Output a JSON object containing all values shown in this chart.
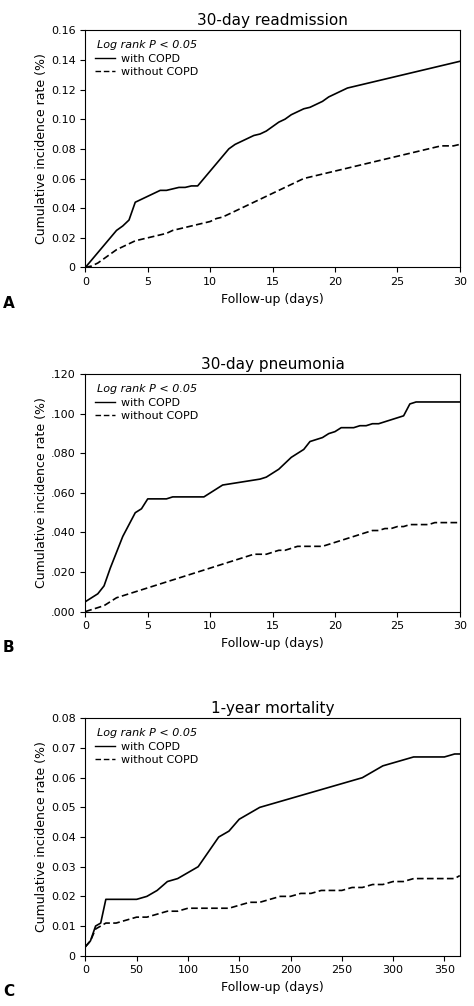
{
  "panel_A": {
    "title": "30-day readmission",
    "xlabel": "Follow-up (days)",
    "ylabel": "Cumulative incidence rate (%)",
    "label": "A",
    "xlim": [
      0,
      30
    ],
    "ylim": [
      0,
      0.16
    ],
    "yticks": [
      0,
      0.02,
      0.04,
      0.06,
      0.08,
      0.1,
      0.12,
      0.14,
      0.16
    ],
    "xticks": [
      0,
      5,
      10,
      15,
      20,
      25,
      30
    ],
    "legend_text": "Log rank P < 0.05",
    "with_copd_x": [
      0,
      0.5,
      1,
      1.5,
      2,
      2.5,
      3,
      3.5,
      4,
      4.5,
      5,
      5.5,
      6,
      6.5,
      7,
      7.5,
      8,
      8.5,
      9,
      9.5,
      10,
      10.5,
      11,
      11.5,
      12,
      12.5,
      13,
      13.5,
      14,
      14.5,
      15,
      15.5,
      16,
      16.5,
      17,
      17.5,
      18,
      18.5,
      19,
      19.5,
      20,
      20.5,
      21,
      21.5,
      22,
      22.5,
      23,
      23.5,
      24,
      24.5,
      25,
      25.5,
      26,
      26.5,
      27,
      27.5,
      28,
      28.5,
      29,
      29.5,
      30
    ],
    "with_copd_y": [
      0,
      0.005,
      0.01,
      0.015,
      0.02,
      0.025,
      0.028,
      0.032,
      0.044,
      0.046,
      0.048,
      0.05,
      0.052,
      0.052,
      0.053,
      0.054,
      0.054,
      0.055,
      0.055,
      0.06,
      0.065,
      0.07,
      0.075,
      0.08,
      0.083,
      0.085,
      0.087,
      0.089,
      0.09,
      0.092,
      0.095,
      0.098,
      0.1,
      0.103,
      0.105,
      0.107,
      0.108,
      0.11,
      0.112,
      0.115,
      0.117,
      0.119,
      0.121,
      0.122,
      0.123,
      0.124,
      0.125,
      0.126,
      0.127,
      0.128,
      0.129,
      0.13,
      0.131,
      0.132,
      0.133,
      0.134,
      0.135,
      0.136,
      0.137,
      0.138,
      0.139
    ],
    "without_copd_x": [
      0,
      0.5,
      1,
      1.5,
      2,
      2.5,
      3,
      3.5,
      4,
      4.5,
      5,
      5.5,
      6,
      6.5,
      7,
      7.5,
      8,
      8.5,
      9,
      9.5,
      10,
      10.5,
      11,
      11.5,
      12,
      12.5,
      13,
      13.5,
      14,
      14.5,
      15,
      15.5,
      16,
      16.5,
      17,
      17.5,
      18,
      18.5,
      19,
      19.5,
      20,
      20.5,
      21,
      21.5,
      22,
      22.5,
      23,
      23.5,
      24,
      24.5,
      25,
      25.5,
      26,
      26.5,
      27,
      27.5,
      28,
      28.5,
      29,
      29.5,
      30
    ],
    "without_copd_y": [
      0,
      0.001,
      0.003,
      0.006,
      0.009,
      0.012,
      0.014,
      0.016,
      0.018,
      0.019,
      0.02,
      0.021,
      0.022,
      0.023,
      0.025,
      0.026,
      0.027,
      0.028,
      0.029,
      0.03,
      0.031,
      0.033,
      0.034,
      0.036,
      0.038,
      0.04,
      0.042,
      0.044,
      0.046,
      0.048,
      0.05,
      0.052,
      0.054,
      0.056,
      0.058,
      0.06,
      0.061,
      0.062,
      0.063,
      0.064,
      0.065,
      0.066,
      0.067,
      0.068,
      0.069,
      0.07,
      0.071,
      0.072,
      0.073,
      0.074,
      0.075,
      0.076,
      0.077,
      0.078,
      0.079,
      0.08,
      0.081,
      0.082,
      0.082,
      0.082,
      0.083
    ]
  },
  "panel_B": {
    "title": "30-day pneumonia",
    "xlabel": "Follow-up (days)",
    "ylabel": "Cumulative incidence rate (%)",
    "label": "B",
    "xlim": [
      0,
      30
    ],
    "ylim": [
      0,
      0.12
    ],
    "yticks": [
      0.0,
      0.02,
      0.04,
      0.06,
      0.08,
      0.1,
      0.12
    ],
    "xticks": [
      0,
      5,
      10,
      15,
      20,
      25,
      30
    ],
    "legend_text": "Log rank P < 0.05",
    "with_copd_x": [
      0,
      0.5,
      1,
      1.5,
      2,
      2.5,
      3,
      3.5,
      4,
      4.5,
      5,
      5.5,
      6,
      6.5,
      7,
      7.5,
      8,
      8.5,
      9,
      9.5,
      10,
      10.5,
      11,
      12,
      13,
      14,
      14.5,
      15,
      15.5,
      16,
      16.5,
      17,
      17.5,
      18,
      18.5,
      19,
      19.5,
      20,
      20.5,
      21,
      21.5,
      22,
      22.5,
      23,
      23.5,
      24,
      24.5,
      25,
      25.5,
      26,
      26.5,
      27,
      27.5,
      28,
      28.5,
      29,
      29.5,
      30
    ],
    "with_copd_y": [
      0.005,
      0.007,
      0.009,
      0.013,
      0.022,
      0.03,
      0.038,
      0.044,
      0.05,
      0.052,
      0.057,
      0.057,
      0.057,
      0.057,
      0.058,
      0.058,
      0.058,
      0.058,
      0.058,
      0.058,
      0.06,
      0.062,
      0.064,
      0.065,
      0.066,
      0.067,
      0.068,
      0.07,
      0.072,
      0.075,
      0.078,
      0.08,
      0.082,
      0.086,
      0.087,
      0.088,
      0.09,
      0.091,
      0.093,
      0.093,
      0.093,
      0.094,
      0.094,
      0.095,
      0.095,
      0.096,
      0.097,
      0.098,
      0.099,
      0.105,
      0.106,
      0.106,
      0.106,
      0.106,
      0.106,
      0.106,
      0.106,
      0.106
    ],
    "without_copd_x": [
      0,
      0.5,
      1,
      1.5,
      2,
      2.5,
      3,
      3.5,
      4,
      4.5,
      5,
      5.5,
      6,
      6.5,
      7,
      7.5,
      8,
      8.5,
      9,
      9.5,
      10,
      10.5,
      11,
      11.5,
      12,
      12.5,
      13,
      13.5,
      14,
      14.5,
      15,
      15.5,
      16,
      16.5,
      17,
      17.5,
      18,
      18.5,
      19,
      19.5,
      20,
      20.5,
      21,
      21.5,
      22,
      22.5,
      23,
      23.5,
      24,
      24.5,
      25,
      25.5,
      26,
      26.5,
      27,
      27.5,
      28,
      28.5,
      29,
      29.5,
      30
    ],
    "without_copd_y": [
      0.0,
      0.001,
      0.002,
      0.003,
      0.005,
      0.007,
      0.008,
      0.009,
      0.01,
      0.011,
      0.012,
      0.013,
      0.014,
      0.015,
      0.016,
      0.017,
      0.018,
      0.019,
      0.02,
      0.021,
      0.022,
      0.023,
      0.024,
      0.025,
      0.026,
      0.027,
      0.028,
      0.029,
      0.029,
      0.029,
      0.03,
      0.031,
      0.031,
      0.032,
      0.033,
      0.033,
      0.033,
      0.033,
      0.033,
      0.034,
      0.035,
      0.036,
      0.037,
      0.038,
      0.039,
      0.04,
      0.041,
      0.041,
      0.042,
      0.042,
      0.043,
      0.043,
      0.044,
      0.044,
      0.044,
      0.044,
      0.045,
      0.045,
      0.045,
      0.045,
      0.045
    ]
  },
  "panel_C": {
    "title": "1-year mortality",
    "xlabel": "Follow-up (days)",
    "ylabel": "Cumulative incidence rate (%)",
    "label": "C",
    "xlim": [
      0,
      365
    ],
    "ylim": [
      0,
      0.08
    ],
    "yticks": [
      0,
      0.01,
      0.02,
      0.03,
      0.04,
      0.05,
      0.06,
      0.07,
      0.08
    ],
    "xticks": [
      0,
      50,
      100,
      150,
      200,
      250,
      300,
      350
    ],
    "legend_text": "Log rank P < 0.05",
    "with_copd_x": [
      0,
      5,
      10,
      15,
      20,
      25,
      30,
      40,
      50,
      60,
      70,
      80,
      90,
      100,
      110,
      120,
      130,
      140,
      150,
      160,
      170,
      180,
      190,
      200,
      210,
      220,
      230,
      240,
      250,
      260,
      270,
      280,
      290,
      300,
      310,
      320,
      330,
      340,
      350,
      360,
      365
    ],
    "with_copd_y": [
      0.003,
      0.005,
      0.01,
      0.011,
      0.019,
      0.019,
      0.019,
      0.019,
      0.019,
      0.02,
      0.022,
      0.025,
      0.026,
      0.028,
      0.03,
      0.035,
      0.04,
      0.042,
      0.046,
      0.048,
      0.05,
      0.051,
      0.052,
      0.053,
      0.054,
      0.055,
      0.056,
      0.057,
      0.058,
      0.059,
      0.06,
      0.062,
      0.064,
      0.065,
      0.066,
      0.067,
      0.067,
      0.067,
      0.067,
      0.068,
      0.068
    ],
    "without_copd_x": [
      0,
      5,
      10,
      15,
      20,
      25,
      30,
      40,
      50,
      60,
      70,
      80,
      90,
      100,
      110,
      120,
      130,
      140,
      150,
      160,
      170,
      180,
      190,
      200,
      210,
      220,
      230,
      240,
      250,
      260,
      270,
      280,
      290,
      300,
      310,
      320,
      330,
      340,
      350,
      360,
      365
    ],
    "without_copd_y": [
      0.003,
      0.005,
      0.009,
      0.01,
      0.011,
      0.011,
      0.011,
      0.012,
      0.013,
      0.013,
      0.014,
      0.015,
      0.015,
      0.016,
      0.016,
      0.016,
      0.016,
      0.016,
      0.017,
      0.018,
      0.018,
      0.019,
      0.02,
      0.02,
      0.021,
      0.021,
      0.022,
      0.022,
      0.022,
      0.023,
      0.023,
      0.024,
      0.024,
      0.025,
      0.025,
      0.026,
      0.026,
      0.026,
      0.026,
      0.026,
      0.027
    ]
  },
  "line_color": "#000000",
  "background_color": "#ffffff",
  "font_size_title": 11,
  "font_size_label": 9,
  "font_size_tick": 8,
  "font_size_legend": 8
}
